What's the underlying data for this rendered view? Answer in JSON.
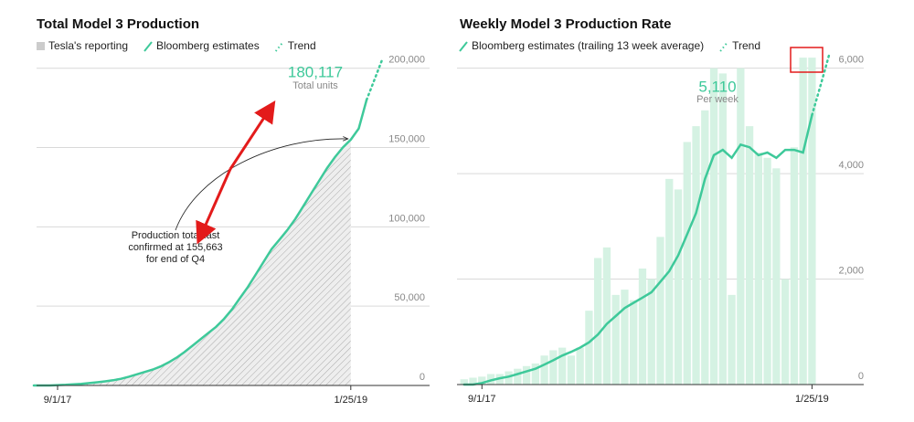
{
  "chart_data": [
    {
      "type": "line",
      "title": "Total Model 3 Production",
      "categories": [
        null,
        null,
        null,
        "9/1/17",
        null,
        null,
        null,
        null,
        null,
        null,
        null,
        null,
        null,
        null,
        null,
        null,
        null,
        null,
        null,
        null,
        null,
        null,
        null,
        null,
        null,
        null,
        null,
        null,
        null,
        null,
        null,
        null,
        null,
        null,
        null,
        null,
        null,
        null,
        null,
        null,
        "1/25/19",
        null,
        null,
        null,
        null
      ],
      "ylim": [
        0,
        220000
      ],
      "yticks": [
        0,
        {
          "value": 50000,
          "label": "50,000"
        },
        {
          "value": 100000,
          "label": "100,000"
        },
        {
          "value": 150000,
          "label": "150,000"
        },
        {
          "value": 200000,
          "label": "200,000"
        }
      ],
      "grid": true,
      "series": [
        {
          "name": "Tesla's reporting",
          "style": "area",
          "color": "#e6e6e6",
          "values": [
            0,
            0,
            0,
            220,
            400,
            700,
            1000,
            1500,
            2000,
            2600,
            3300,
            4200,
            5500,
            7000,
            8500,
            10000,
            12000,
            14500,
            17500,
            21000,
            25000,
            29000,
            33000,
            37000,
            42000,
            48000,
            55000,
            62000,
            70000,
            78000,
            86000,
            92000,
            98000,
            105000,
            113000,
            121000,
            129000,
            137000,
            144000,
            150000,
            155663,
            null,
            null,
            null,
            null
          ]
        },
        {
          "name": "Bloomberg estimates",
          "style": "line",
          "color": "#3ec99a",
          "values": [
            0,
            0,
            0,
            220,
            400,
            700,
            1000,
            1500,
            2000,
            2600,
            3300,
            4200,
            5500,
            7000,
            8500,
            10000,
            12000,
            14500,
            17500,
            21000,
            25000,
            29000,
            33000,
            37000,
            42000,
            48000,
            55000,
            62000,
            70000,
            78000,
            86000,
            92000,
            98000,
            105000,
            113000,
            121000,
            129000,
            137000,
            144000,
            150000,
            155000,
            162000,
            180117,
            null,
            null
          ]
        },
        {
          "name": "Trend",
          "style": "dotted",
          "color": "#3ec99a",
          "values": [
            null,
            null,
            null,
            null,
            null,
            null,
            null,
            null,
            null,
            null,
            null,
            null,
            null,
            null,
            null,
            null,
            null,
            null,
            null,
            null,
            null,
            null,
            null,
            null,
            null,
            null,
            null,
            null,
            null,
            null,
            null,
            null,
            null,
            null,
            null,
            null,
            null,
            null,
            null,
            null,
            null,
            null,
            180117,
            193000,
            206000
          ]
        }
      ],
      "annotations": [
        "180,117",
        "Total units",
        "Production total last",
        "confirmed at 155,663",
        "for end of Q4"
      ]
    },
    {
      "type": "bar-line",
      "title": "Weekly Model 3 Production Rate",
      "categories": [
        null,
        null,
        null,
        "9/1/17",
        null,
        null,
        null,
        null,
        null,
        null,
        null,
        null,
        null,
        null,
        null,
        null,
        null,
        null,
        null,
        null,
        null,
        null,
        null,
        null,
        null,
        null,
        null,
        null,
        null,
        null,
        null,
        null,
        null,
        null,
        null,
        null,
        null,
        null,
        null,
        null,
        "1/25/19",
        null,
        null,
        null,
        null
      ],
      "ylim": [
        0,
        6600
      ],
      "yticks": [
        0,
        {
          "value": 2000,
          "label": "2,000"
        },
        {
          "value": 4000,
          "label": "4,000"
        },
        {
          "value": 6000,
          "label": "6,000"
        }
      ],
      "grid": true,
      "series": [
        {
          "style": "bar",
          "color": "#d5f2e3",
          "values": [
            null,
            100,
            130,
            150,
            200,
            200,
            250,
            300,
            350,
            400,
            550,
            650,
            700,
            550,
            700,
            1400,
            2400,
            2600,
            1700,
            1800,
            1600,
            2200,
            2000,
            2800,
            3900,
            3700,
            4600,
            4900,
            5200,
            6000,
            5900,
            1700,
            6000,
            4900,
            4400,
            4300,
            4100,
            2000,
            4500,
            6200,
            6200,
            null,
            null,
            null,
            null
          ]
        },
        {
          "name": "Bloomberg estimates (trailing 13 week average)",
          "style": "line",
          "color": "#3ec99a",
          "values": [
            null,
            0,
            0,
            30,
            80,
            120,
            150,
            200,
            250,
            300,
            380,
            460,
            550,
            620,
            700,
            800,
            950,
            1150,
            1300,
            1450,
            1550,
            1650,
            1750,
            1950,
            2150,
            2450,
            2850,
            3250,
            3900,
            4350,
            4450,
            4300,
            4550,
            4500,
            4350,
            4400,
            4300,
            4450,
            4450,
            4400,
            5110,
            null,
            null,
            null,
            null
          ]
        },
        {
          "name": "Trend",
          "style": "dotted",
          "color": "#3ec99a",
          "values": [
            null,
            null,
            null,
            null,
            null,
            null,
            null,
            null,
            null,
            null,
            null,
            null,
            null,
            null,
            null,
            null,
            null,
            null,
            null,
            null,
            null,
            null,
            null,
            null,
            null,
            null,
            null,
            null,
            null,
            null,
            null,
            null,
            null,
            null,
            null,
            null,
            null,
            null,
            null,
            null,
            5110,
            5700,
            6300,
            null,
            null
          ]
        }
      ],
      "annotations": [
        "5,110",
        "Per week"
      ]
    }
  ]
}
